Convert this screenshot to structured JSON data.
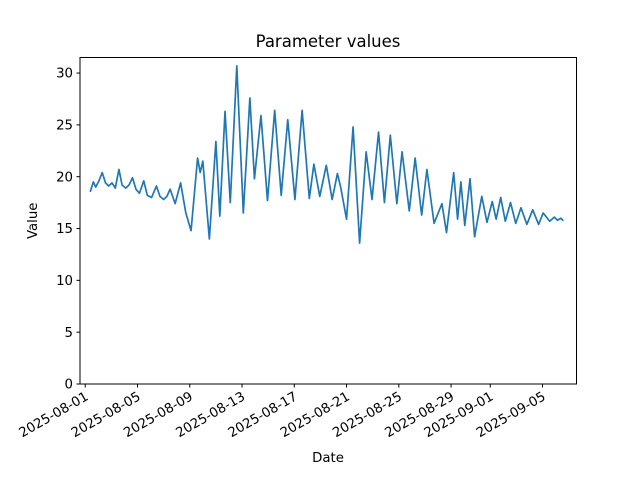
{
  "figure": {
    "background": "#ffffff",
    "plot_background": "#ffffff",
    "spine_color": "#000000"
  },
  "chart_data": {
    "type": "line",
    "title": "Parameter values",
    "xlabel": "Date",
    "ylabel": "Value",
    "legend": null,
    "grid": false,
    "line_color": "#1f77b4",
    "line_width": 1.7,
    "x_unit": "days since 2025-08-01",
    "xlim": [
      -0.4,
      37.6
    ],
    "ylim": [
      0,
      31.5
    ],
    "y_ticks": [
      0,
      5,
      10,
      15,
      20,
      25,
      30
    ],
    "x_ticks": {
      "days": [
        0,
        4,
        8,
        12,
        16,
        20,
        24,
        28,
        31,
        35
      ],
      "labels": [
        "2025-08-01",
        "2025-08-05",
        "2025-08-09",
        "2025-08-13",
        "2025-08-17",
        "2025-08-21",
        "2025-08-25",
        "2025-08-29",
        "2025-09-01",
        "2025-09-05"
      ]
    },
    "points": [
      [
        0.4,
        18.6
      ],
      [
        0.62,
        19.5
      ],
      [
        0.8,
        19.0
      ],
      [
        1.05,
        19.6
      ],
      [
        1.3,
        20.4
      ],
      [
        1.55,
        19.4
      ],
      [
        1.8,
        19.1
      ],
      [
        2.05,
        19.4
      ],
      [
        2.3,
        18.9
      ],
      [
        2.58,
        20.7
      ],
      [
        2.82,
        19.2
      ],
      [
        3.1,
        18.9
      ],
      [
        3.35,
        19.2
      ],
      [
        3.62,
        19.9
      ],
      [
        3.88,
        18.8
      ],
      [
        4.15,
        18.4
      ],
      [
        4.48,
        19.6
      ],
      [
        4.75,
        18.2
      ],
      [
        5.08,
        18.0
      ],
      [
        5.45,
        19.1
      ],
      [
        5.72,
        18.1
      ],
      [
        6.0,
        17.8
      ],
      [
        6.25,
        18.1
      ],
      [
        6.5,
        18.8
      ],
      [
        6.88,
        17.4
      ],
      [
        7.3,
        19.4
      ],
      [
        7.7,
        16.5
      ],
      [
        8.1,
        14.8
      ],
      [
        8.6,
        21.8
      ],
      [
        8.8,
        20.4
      ],
      [
        9.0,
        21.5
      ],
      [
        9.5,
        14.0
      ],
      [
        10.0,
        23.4
      ],
      [
        10.3,
        16.2
      ],
      [
        10.7,
        26.3
      ],
      [
        11.1,
        17.5
      ],
      [
        11.6,
        30.7
      ],
      [
        12.1,
        16.5
      ],
      [
        12.6,
        27.6
      ],
      [
        12.95,
        19.8
      ],
      [
        13.45,
        25.9
      ],
      [
        13.95,
        17.7
      ],
      [
        14.5,
        26.4
      ],
      [
        15.0,
        18.2
      ],
      [
        15.5,
        25.5
      ],
      [
        16.05,
        17.8
      ],
      [
        16.6,
        26.4
      ],
      [
        17.15,
        17.9
      ],
      [
        17.5,
        21.2
      ],
      [
        17.95,
        18.1
      ],
      [
        18.45,
        21.1
      ],
      [
        18.9,
        17.8
      ],
      [
        19.3,
        20.3
      ],
      [
        19.55,
        19.0
      ],
      [
        20.0,
        15.9
      ],
      [
        20.5,
        24.8
      ],
      [
        21.0,
        13.6
      ],
      [
        21.5,
        22.4
      ],
      [
        21.95,
        17.8
      ],
      [
        22.45,
        24.3
      ],
      [
        22.9,
        17.5
      ],
      [
        23.35,
        24.0
      ],
      [
        23.85,
        17.4
      ],
      [
        24.25,
        22.4
      ],
      [
        24.8,
        16.7
      ],
      [
        25.25,
        21.8
      ],
      [
        25.75,
        16.3
      ],
      [
        26.15,
        20.7
      ],
      [
        26.7,
        15.5
      ],
      [
        27.3,
        17.4
      ],
      [
        27.65,
        14.6
      ],
      [
        28.2,
        20.4
      ],
      [
        28.5,
        15.9
      ],
      [
        28.75,
        19.5
      ],
      [
        29.05,
        15.3
      ],
      [
        29.45,
        19.8
      ],
      [
        29.8,
        14.2
      ],
      [
        30.35,
        18.1
      ],
      [
        30.75,
        15.6
      ],
      [
        31.15,
        17.6
      ],
      [
        31.45,
        15.9
      ],
      [
        31.8,
        18.0
      ],
      [
        32.15,
        15.7
      ],
      [
        32.55,
        17.5
      ],
      [
        32.95,
        15.5
      ],
      [
        33.35,
        17.0
      ],
      [
        33.8,
        15.4
      ],
      [
        34.25,
        16.8
      ],
      [
        34.7,
        15.4
      ],
      [
        35.05,
        16.5
      ],
      [
        35.55,
        15.7
      ],
      [
        35.9,
        16.1
      ],
      [
        36.15,
        15.8
      ],
      [
        36.4,
        16.0
      ],
      [
        36.55,
        15.8
      ]
    ]
  }
}
